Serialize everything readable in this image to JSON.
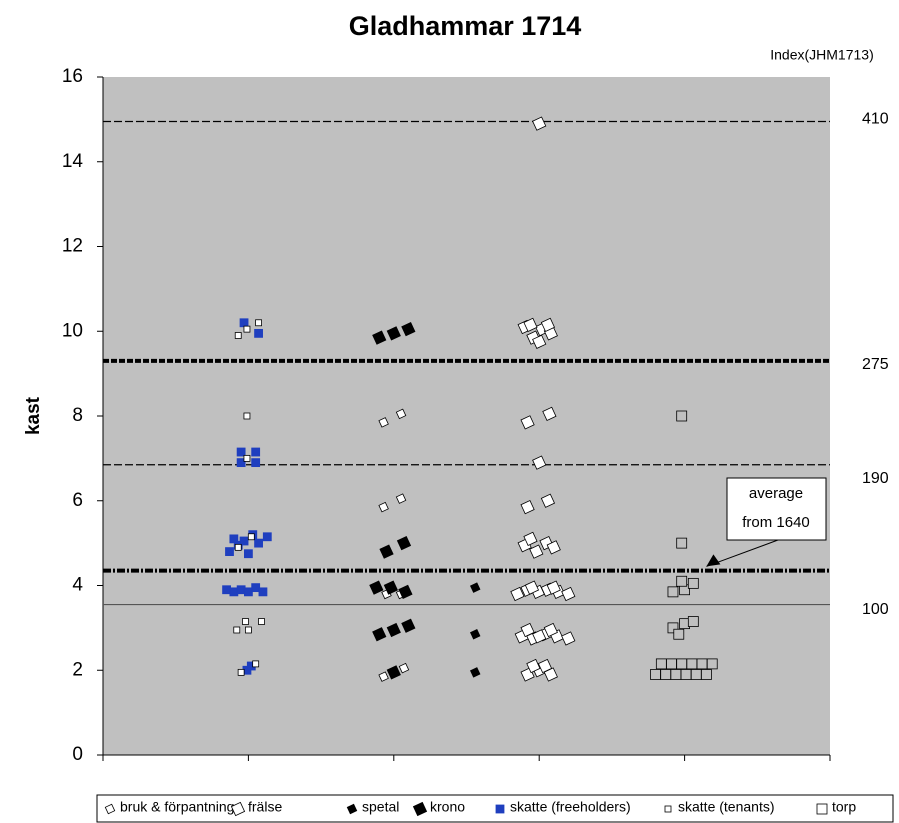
{
  "chart_data": {
    "type": "scatter",
    "title": "Gladhammar 1714",
    "right_axis_label": "Index(JHM1713)",
    "ylabel": "kast",
    "xlim": [
      0,
      5
    ],
    "xticks": [
      0,
      1,
      2,
      3,
      4,
      5
    ],
    "ylim": [
      0,
      16
    ],
    "yticks": [
      0,
      2,
      4,
      6,
      8,
      10,
      12,
      14,
      16
    ],
    "background": "#c0c0c0",
    "reference_lines": [
      {
        "y": 14.95,
        "index": 410,
        "style": "dashed"
      },
      {
        "y": 9.3,
        "index": 275,
        "style": "thick-dashed"
      },
      {
        "y": 6.85,
        "index": 190,
        "style": "dashed"
      },
      {
        "y": 4.35,
        "style": "thick-dash-dot"
      },
      {
        "y": 3.55,
        "index": 100,
        "style": "solid"
      }
    ],
    "annotation": {
      "lines": [
        "average",
        "from 1640"
      ],
      "xy": [
        4.15,
        4.45
      ]
    },
    "legend": "bottom",
    "series": [
      {
        "name": "bruk & förpantning",
        "marker": "diamond-small",
        "color": "#ffffff",
        "x": [
          1.93,
          2.05,
          1.93,
          2.05,
          1.95,
          2.05,
          1.93,
          2.07
        ],
        "y": [
          7.85,
          8.05,
          5.85,
          6.05,
          3.8,
          3.8,
          1.85,
          2.05
        ]
      },
      {
        "name": "frälse",
        "marker": "diamond",
        "color": "#ffffff",
        "x": [
          3.0,
          2.9,
          2.96,
          3.02,
          3.08,
          2.94,
          3.06,
          3.0,
          2.92,
          3.07,
          3.0,
          2.92,
          3.06,
          2.9,
          2.98,
          3.05,
          2.94,
          3.1,
          2.85,
          2.92,
          2.99,
          3.06,
          3.13,
          3.2,
          2.95,
          3.1,
          2.88,
          2.96,
          3.04,
          3.12,
          3.2,
          2.92,
          3.08,
          3.0,
          2.92,
          3.0,
          3.08,
          2.96,
          3.04
        ],
        "y": [
          14.9,
          10.1,
          9.85,
          10.05,
          9.95,
          10.15,
          10.15,
          9.75,
          7.85,
          8.05,
          6.9,
          5.85,
          6.0,
          4.95,
          4.8,
          5.0,
          5.1,
          4.9,
          3.8,
          3.9,
          3.85,
          3.9,
          3.85,
          3.8,
          3.95,
          3.95,
          2.8,
          2.75,
          2.85,
          2.8,
          2.75,
          2.95,
          2.95,
          2.8,
          1.9,
          2.0,
          1.9,
          2.1,
          2.1
        ]
      },
      {
        "name": "spetal",
        "marker": "diamond-small",
        "color": "#000000",
        "x": [
          2.56,
          2.56,
          2.56
        ],
        "y": [
          3.95,
          2.85,
          1.95
        ]
      },
      {
        "name": "krono",
        "marker": "diamond",
        "color": "#000000",
        "x": [
          1.9,
          2.0,
          2.1,
          1.95,
          2.07,
          1.88,
          1.98,
          2.08,
          1.9,
          2.0,
          2.1,
          2.0
        ],
        "y": [
          9.85,
          9.95,
          10.05,
          4.8,
          5.0,
          3.95,
          3.95,
          3.85,
          2.85,
          2.95,
          3.05,
          1.95
        ]
      },
      {
        "name": "skatte (freeholders)",
        "marker": "square",
        "color": "#1f3fbf",
        "x": [
          0.97,
          1.07,
          0.95,
          1.05,
          0.95,
          1.05,
          0.87,
          0.93,
          1.0,
          1.07,
          1.13,
          0.9,
          1.03,
          0.97,
          0.85,
          0.9,
          0.95,
          1.0,
          1.05,
          1.1,
          0.99,
          1.02
        ],
        "y": [
          10.2,
          9.95,
          7.15,
          7.15,
          6.9,
          6.9,
          4.8,
          4.95,
          4.75,
          5.0,
          5.15,
          5.1,
          5.2,
          5.05,
          3.9,
          3.85,
          3.9,
          3.85,
          3.95,
          3.85,
          2.0,
          2.1
        ]
      },
      {
        "name": "skatte (tenants)",
        "marker": "square-small",
        "color": "#ffffff",
        "x": [
          0.93,
          0.99,
          1.07,
          0.99,
          0.99,
          0.93,
          1.02,
          0.92,
          0.98,
          1.0,
          1.09,
          0.95,
          1.05
        ],
        "y": [
          9.9,
          10.05,
          10.2,
          8.0,
          7.0,
          4.9,
          5.15,
          2.95,
          3.15,
          2.95,
          3.15,
          1.95,
          2.15
        ]
      },
      {
        "name": "torp",
        "marker": "square-open",
        "color": "#c0c0c0",
        "x": [
          3.98,
          3.98,
          3.92,
          4.0,
          4.06,
          3.98,
          3.92,
          4.0,
          4.06,
          3.96,
          3.8,
          3.87,
          3.94,
          4.01,
          4.08,
          4.15,
          3.84,
          3.91,
          3.98,
          4.05,
          4.12,
          4.19
        ],
        "y": [
          8.0,
          5.0,
          3.85,
          3.9,
          4.05,
          4.1,
          3.0,
          3.1,
          3.15,
          2.85,
          1.9,
          1.9,
          1.9,
          1.9,
          1.9,
          1.9,
          2.15,
          2.15,
          2.15,
          2.15,
          2.15,
          2.15
        ]
      }
    ]
  }
}
